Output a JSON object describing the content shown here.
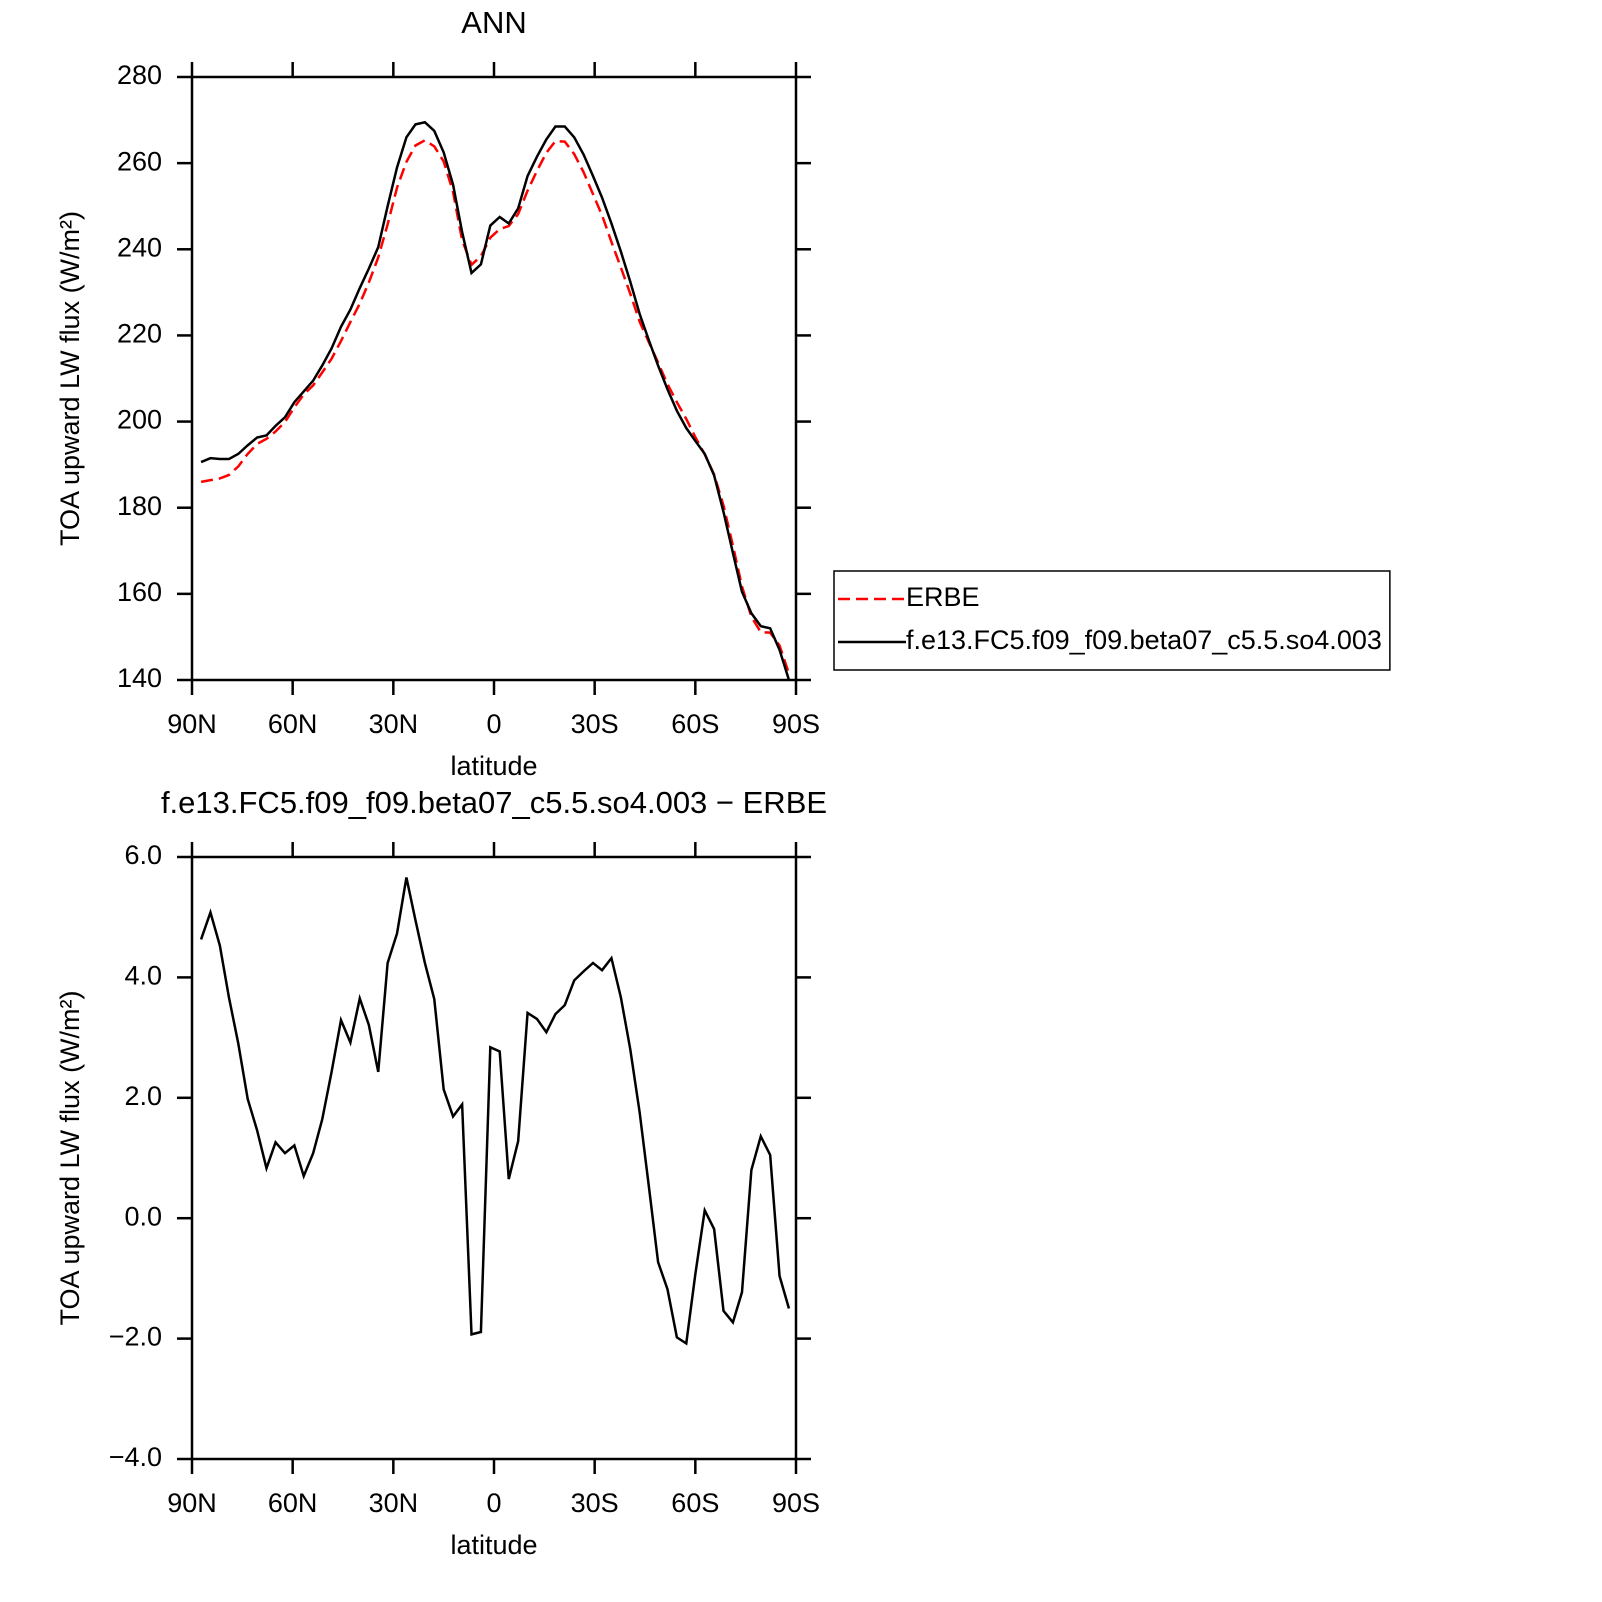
{
  "chart_data": [
    {
      "type": "line",
      "title": "ANN",
      "xlabel": "latitude",
      "ylabel": "TOA upward LW flux (W/m²)",
      "x": [
        87.3,
        84.5,
        81.7,
        79.0,
        76.2,
        73.4,
        70.6,
        67.8,
        65.1,
        62.3,
        59.5,
        56.7,
        53.9,
        51.2,
        48.4,
        45.6,
        42.8,
        40.0,
        37.3,
        34.5,
        31.7,
        28.9,
        26.1,
        23.4,
        20.6,
        17.8,
        15.0,
        12.2,
        9.5,
        6.7,
        3.9,
        1.1,
        -1.7,
        -4.4,
        -7.2,
        -10.0,
        -12.8,
        -15.6,
        -18.3,
        -21.1,
        -23.9,
        -26.7,
        -29.5,
        -32.2,
        -35.0,
        -37.8,
        -40.6,
        -43.4,
        -46.1,
        -48.9,
        -51.7,
        -54.5,
        -57.3,
        -60.0,
        -62.8,
        -65.6,
        -68.4,
        -71.2,
        -73.9,
        -76.7,
        -79.5,
        -82.3,
        -85.1,
        -87.9
      ],
      "series": [
        {
          "name": "ERBE",
          "color": "#ff0000",
          "dash": "dashed",
          "values": [
            186.0,
            186.4,
            186.8,
            187.6,
            189.6,
            192.5,
            194.8,
            196.0,
            197.7,
            199.9,
            203.3,
            206.3,
            208.4,
            211.4,
            214.6,
            218.7,
            223.1,
            227.4,
            232.3,
            238.1,
            245.8,
            254.3,
            260.3,
            264.1,
            265.3,
            263.9,
            260.4,
            253.3,
            242.1,
            236.4,
            238.4,
            242.7,
            244.7,
            245.4,
            248.2,
            253.6,
            258.2,
            262.4,
            265.1,
            265.0,
            262.1,
            257.9,
            252.8,
            247.9,
            241.7,
            235.8,
            229.7,
            223.2,
            218.5,
            213.7,
            208.7,
            204.5,
            200.6,
            196.4,
            192.4,
            187.7,
            180.5,
            171.2,
            161.7,
            154.7,
            151.1,
            151.0,
            148.0,
            141.5
          ]
        },
        {
          "name": "f.e13.FC5.f09_f09.beta07_c5.5.so4.003",
          "color": "#000000",
          "dash": "solid",
          "values": [
            190.6,
            191.5,
            191.3,
            191.3,
            192.5,
            194.5,
            196.3,
            196.8,
            199,
            201,
            204.5,
            207,
            209.5,
            213,
            217,
            222,
            226,
            231,
            235.5,
            240.5,
            250,
            259,
            266,
            269,
            269.5,
            267.5,
            262.5,
            255,
            244,
            234.5,
            236.5,
            245.5,
            247.5,
            246,
            249.5,
            257,
            261.5,
            265.5,
            268.5,
            268.5,
            266,
            262,
            257,
            252,
            246,
            239.5,
            232.5,
            225,
            219,
            213,
            207.5,
            202.5,
            198.5,
            195.5,
            192.5,
            187.5,
            179,
            169.5,
            160.5,
            155.5,
            152.5,
            152,
            147,
            140
          ]
        }
      ],
      "xlim": [
        90,
        -90
      ],
      "xticks": [
        {
          "value": 90,
          "label": "90N"
        },
        {
          "value": 60,
          "label": "60N"
        },
        {
          "value": 30,
          "label": "30N"
        },
        0,
        {
          "value": -30,
          "label": "30S"
        },
        {
          "value": -60,
          "label": "60S"
        },
        {
          "value": -90,
          "label": "90S"
        }
      ],
      "ylim": [
        140,
        280
      ],
      "yticks": [
        140,
        160,
        180,
        200,
        220,
        240,
        260,
        280
      ],
      "legend": "right"
    },
    {
      "type": "line",
      "title": "f.e13.FC5.f09_f09.beta07_c5.5.so4.003 − ERBE",
      "xlabel": "latitude",
      "ylabel": "TOA upward LW flux (W/m²)",
      "x": [
        87.3,
        84.5,
        81.7,
        79.0,
        76.2,
        73.4,
        70.6,
        67.8,
        65.1,
        62.3,
        59.5,
        56.7,
        53.9,
        51.2,
        48.4,
        45.6,
        42.8,
        40.0,
        37.3,
        34.5,
        31.7,
        28.9,
        26.1,
        23.4,
        20.6,
        17.8,
        15.0,
        12.2,
        9.5,
        6.7,
        3.9,
        1.1,
        -1.7,
        -4.4,
        -7.2,
        -10.0,
        -12.8,
        -15.6,
        -18.3,
        -21.1,
        -23.9,
        -26.7,
        -29.5,
        -32.2,
        -35.0,
        -37.8,
        -40.6,
        -43.4,
        -46.1,
        -48.9,
        -51.7,
        -54.5,
        -57.3,
        -60.0,
        -62.8,
        -65.6,
        -68.4,
        -71.2,
        -73.9,
        -76.7,
        -79.5,
        -82.3,
        -85.1,
        -87.9
      ],
      "values": [
        4.63,
        5.08,
        4.53,
        3.67,
        2.9,
        1.98,
        1.46,
        0.83,
        1.26,
        1.08,
        1.21,
        0.7,
        1.08,
        1.64,
        2.43,
        3.29,
        2.92,
        3.65,
        3.21,
        2.43,
        4.24,
        4.73,
        5.66,
        4.95,
        4.24,
        3.64,
        2.14,
        1.69,
        1.89,
        -1.93,
        -1.89,
        2.84,
        2.77,
        0.65,
        1.28,
        3.41,
        3.31,
        3.09,
        3.39,
        3.54,
        3.95,
        4.1,
        4.24,
        4.12,
        4.32,
        3.67,
        2.81,
        1.76,
        0.55,
        -0.73,
        -1.18,
        -1.98,
        -2.08,
        -0.93,
        0.13,
        -0.18,
        -1.54,
        -1.73,
        -1.23,
        0.8,
        1.36,
        1.05,
        -0.96,
        -1.5
      ],
      "color": "#000000",
      "xlim": [
        90,
        -90
      ],
      "xticks": [
        {
          "value": 90,
          "label": "90N"
        },
        {
          "value": 60,
          "label": "60N"
        },
        {
          "value": 30,
          "label": "30N"
        },
        0,
        {
          "value": -30,
          "label": "30S"
        },
        {
          "value": -60,
          "label": "60S"
        },
        {
          "value": -90,
          "label": "90S"
        }
      ],
      "ylim": [
        -4,
        6
      ],
      "yticks": [
        {
          "value": -4,
          "label": "−4.0"
        },
        {
          "value": -2,
          "label": "−2.0"
        },
        {
          "value": 0,
          "label": "0.0"
        },
        {
          "value": 2,
          "label": "2.0"
        },
        {
          "value": 4,
          "label": "4.0"
        },
        {
          "value": 6,
          "label": "6.0"
        }
      ]
    }
  ]
}
